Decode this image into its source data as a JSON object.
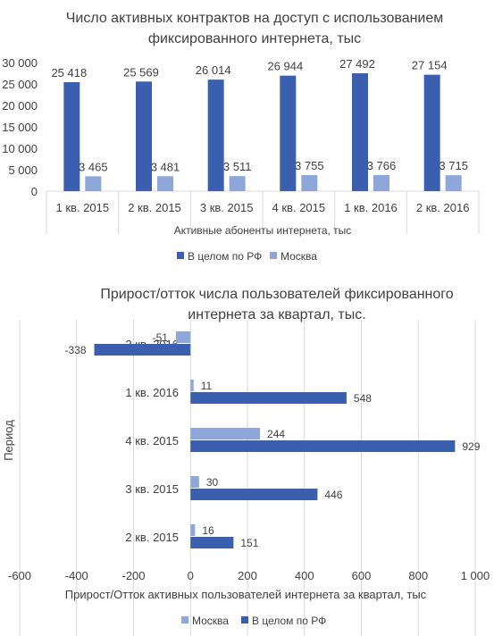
{
  "chart_data": [
    {
      "type": "bar",
      "title": "Число активных контрактов на доступ с использованием фиксированного  интернета, тыс",
      "title_lines": [
        "Число активных контрактов на доступ с использованием",
        "фиксированного  интернета, тыс"
      ],
      "xlabel": "Активные абоненты интернета, тыс",
      "ylabel": "",
      "ylim": [
        0,
        30000
      ],
      "yticks": [
        0,
        5000,
        10000,
        15000,
        20000,
        25000,
        30000
      ],
      "ytick_labels": [
        "0",
        "5 000",
        "10 000",
        "15 000",
        "20 000",
        "25 000",
        "30 000"
      ],
      "categories": [
        "1 кв. 2015",
        "2 кв. 2015",
        "3 кв. 2015",
        "4 кв. 2015",
        "1 кв. 2016",
        "2 кв. 2016"
      ],
      "series": [
        {
          "name": "В целом по РФ",
          "color": "#3A5FAE",
          "values": [
            25418,
            25569,
            26014,
            26944,
            27492,
            27154
          ],
          "labels": [
            "25 418",
            "25 569",
            "26 014",
            "26 944",
            "27 492",
            "27 154"
          ]
        },
        {
          "name": "Москва",
          "color": "#8FA6D9",
          "values": [
            3465,
            3481,
            3511,
            3755,
            3766,
            3715
          ],
          "labels": [
            "3 465",
            "3 481",
            "3 511",
            "3 755",
            "3 766",
            "3 715"
          ]
        }
      ],
      "legend": "bottom",
      "grid": false
    },
    {
      "type": "bar",
      "orientation": "horizontal",
      "title": "Прирост/отток числа пользователей фиксированного интернета за квартал, тыс.",
      "title_lines": [
        "Прирост/отток числа пользователей фиксированного",
        "интернета за квартал, тыс."
      ],
      "xlabel": "Прирост/Отток  активных пользователей интернета за квартал, тыс",
      "ylabel": "Период",
      "xlim": [
        -600,
        1000
      ],
      "xticks": [
        -600,
        -400,
        -200,
        0,
        200,
        400,
        600,
        800,
        1000
      ],
      "xtick_labels": [
        "-600",
        "-400",
        "-200",
        "0",
        "200",
        "400",
        "600",
        "800",
        "1 000"
      ],
      "categories": [
        "2 кв. 2016",
        "1 кв. 2016",
        "4 кв. 2015",
        "3 кв. 2015",
        "2 кв. 2015"
      ],
      "series": [
        {
          "name": "Москва",
          "color": "#8FA6D9",
          "values": [
            -51,
            11,
            244,
            30,
            16
          ],
          "labels": [
            "-51",
            "11",
            "244",
            "30",
            "16"
          ]
        },
        {
          "name": "В целом по РФ",
          "color": "#3A5FAE",
          "values": [
            -338,
            548,
            929,
            446,
            151
          ],
          "labels": [
            "-338",
            "548",
            "929",
            "446",
            "151"
          ]
        }
      ],
      "legend": "bottom",
      "grid": true
    }
  ]
}
